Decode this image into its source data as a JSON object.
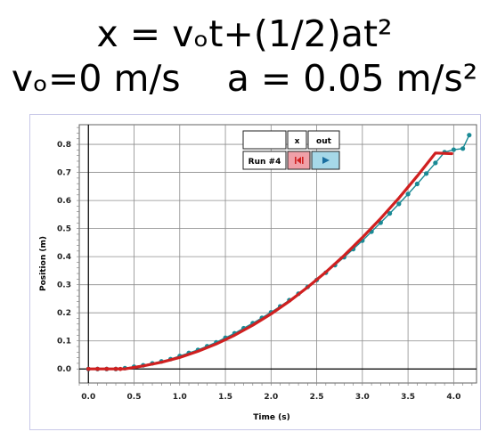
{
  "header": {
    "equation": "x = vₒt+(1/2)at²",
    "params": "vₒ=0 m/s    a = 0.05 m/s²"
  },
  "colors": {
    "data": "#1a8a95",
    "fit": "#d02020",
    "frame": "#c8c8e8",
    "grid": "#8c8c8c",
    "stop_button": "#f0a0a8",
    "play_button": "#a6d8e8"
  },
  "legend": {
    "col_x": "x",
    "col_out": "out",
    "run_label": "Run #4",
    "stop_icon": "stop-icon",
    "play_icon": "play-icon"
  },
  "chart_data": {
    "type": "scatter",
    "xlabel": "Time (s)",
    "ylabel": "Position (m)",
    "xlim": [
      -0.1,
      4.25
    ],
    "ylim": [
      -0.05,
      0.87
    ],
    "xticks": [
      0.0,
      0.5,
      1.0,
      1.5,
      2.0,
      2.5,
      3.0,
      3.5,
      4.0
    ],
    "yticks": [
      0.0,
      0.1,
      0.2,
      0.3,
      0.4,
      0.5,
      0.6,
      0.7,
      0.8
    ],
    "grid": true,
    "series": [
      {
        "marker": "line+points",
        "x": [
          0.0,
          0.1,
          0.2,
          0.3,
          0.4,
          0.5,
          0.6,
          0.7,
          0.8,
          0.9,
          1.0,
          1.1,
          1.2,
          1.3,
          1.4,
          1.5,
          1.6,
          1.7,
          1.8,
          1.9,
          2.0,
          2.1,
          2.2,
          2.3,
          2.4,
          2.5,
          2.6,
          2.7,
          2.8,
          2.9,
          3.0,
          3.1,
          3.2,
          3.3,
          3.4,
          3.5,
          3.6,
          3.7,
          3.8,
          3.9,
          4.0,
          4.1,
          4.17
        ],
        "y": [
          0.0,
          0.0,
          0.0,
          0.0,
          0.003,
          0.008,
          0.013,
          0.02,
          0.027,
          0.035,
          0.046,
          0.057,
          0.068,
          0.081,
          0.095,
          0.111,
          0.127,
          0.145,
          0.163,
          0.182,
          0.202,
          0.223,
          0.245,
          0.268,
          0.292,
          0.317,
          0.343,
          0.37,
          0.398,
          0.427,
          0.457,
          0.489,
          0.521,
          0.554,
          0.588,
          0.623,
          0.659,
          0.696,
          0.734,
          0.772,
          0.781,
          0.785,
          0.833
        ]
      },
      {
        "marker": "line",
        "x": [
          0.0,
          0.1,
          0.2,
          0.3,
          0.35,
          0.4,
          0.6,
          0.8,
          1.0,
          1.2,
          1.4,
          1.6,
          1.8,
          2.0,
          2.2,
          2.4,
          2.6,
          2.8,
          3.0,
          3.2,
          3.4,
          3.6,
          3.8,
          3.98
        ],
        "y": [
          0.0,
          0.0,
          0.0,
          0.0,
          0.0,
          0.0,
          0.011,
          0.024,
          0.041,
          0.063,
          0.089,
          0.12,
          0.156,
          0.196,
          0.241,
          0.291,
          0.345,
          0.404,
          0.468,
          0.536,
          0.609,
          0.687,
          0.769,
          0.767
        ]
      }
    ]
  }
}
